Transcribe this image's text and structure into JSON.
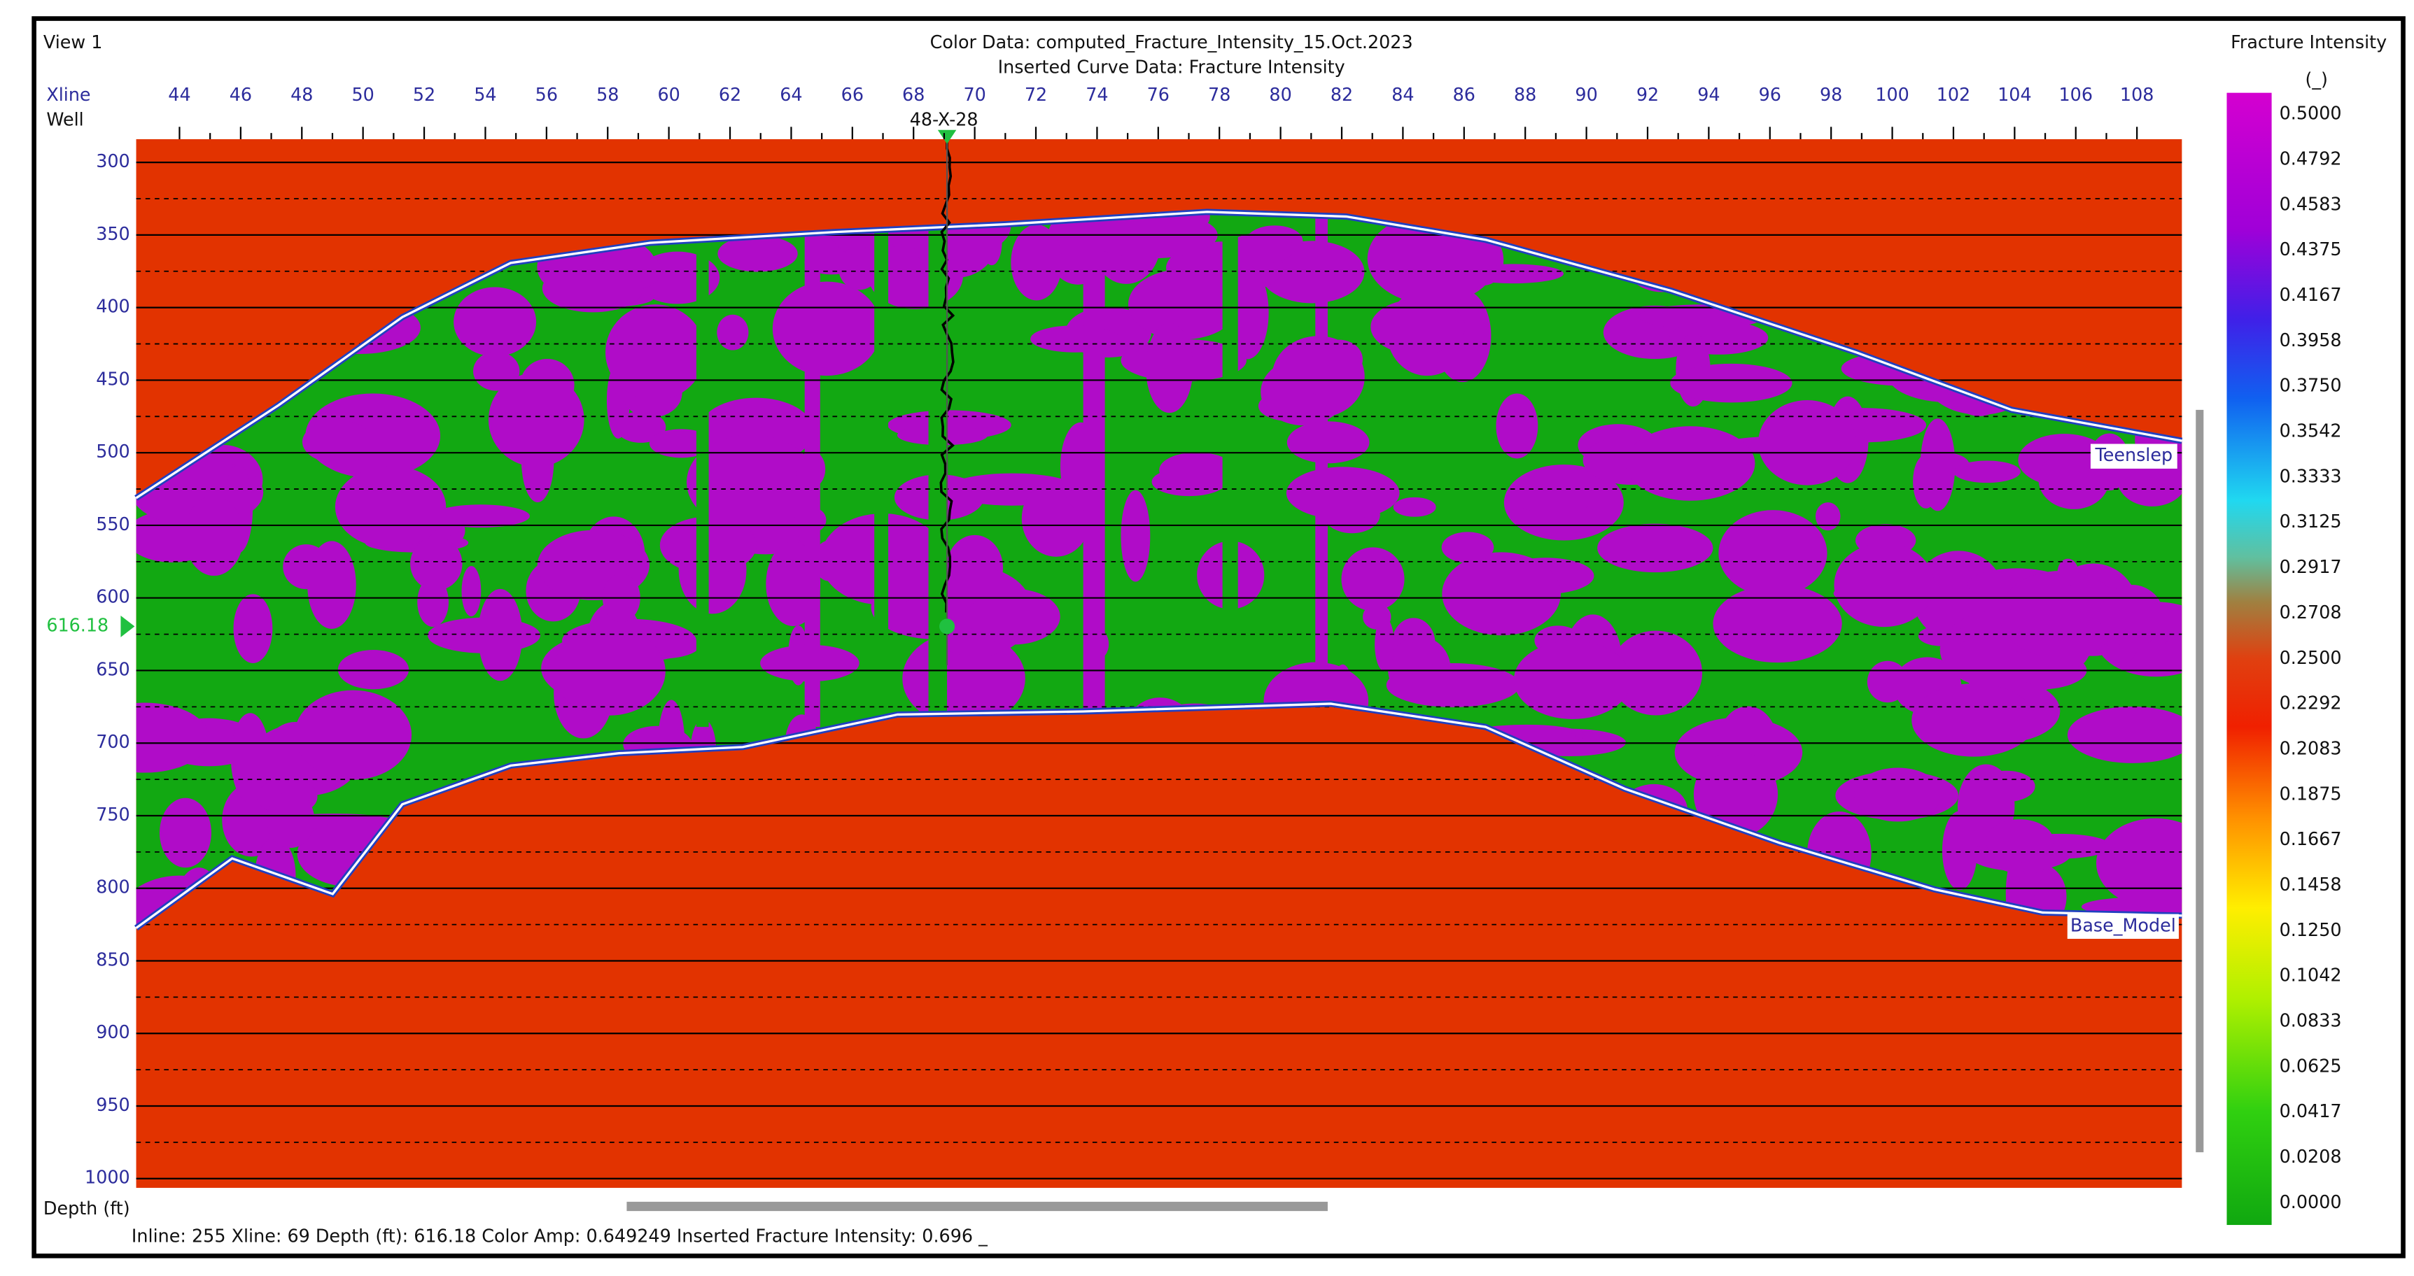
{
  "window": {
    "title": "View 1"
  },
  "header": {
    "line1": "Color Data: computed_Fracture_Intensity_15.Oct.2023",
    "line2": "Inserted Curve Data: Fracture Intensity"
  },
  "axes": {
    "x_label": "Xline",
    "well_label": "Well",
    "y_label": "Depth (ft)",
    "x_ticks": [
      "44",
      "46",
      "48",
      "50",
      "52",
      "54",
      "56",
      "58",
      "60",
      "62",
      "64",
      "66",
      "68",
      "70",
      "72",
      "74",
      "76",
      "78",
      "80",
      "82",
      "84",
      "86",
      "88",
      "90",
      "92",
      "94",
      "96",
      "98",
      "100",
      "102",
      "104",
      "106",
      "108"
    ],
    "y_ticks": [
      "300",
      "350",
      "400",
      "450",
      "500",
      "550",
      "600",
      "650",
      "700",
      "750",
      "800",
      "850",
      "900",
      "950",
      "1000"
    ],
    "depth_marker": "616.18"
  },
  "well": {
    "name": "48-X-28"
  },
  "horizons": {
    "top": "Teenslep",
    "base": "Base_Model"
  },
  "colorbar": {
    "title": "Fracture Intensity",
    "unit": "(_)",
    "labels": [
      "0.5000",
      "0.4792",
      "0.4583",
      "0.4375",
      "0.4167",
      "0.3958",
      "0.3750",
      "0.3542",
      "0.3333",
      "0.3125",
      "0.2917",
      "0.2708",
      "0.2500",
      "0.2292",
      "0.2083",
      "0.1875",
      "0.1667",
      "0.1458",
      "0.1250",
      "0.1042",
      "0.0833",
      "0.0625",
      "0.0417",
      "0.0208",
      "0.0000"
    ]
  },
  "status_bar": "Inline: 255  Xline: 69  Depth (ft): 616.18  Color Amp: 0.649249  Inserted Fracture Intensity: 0.696 _"
}
